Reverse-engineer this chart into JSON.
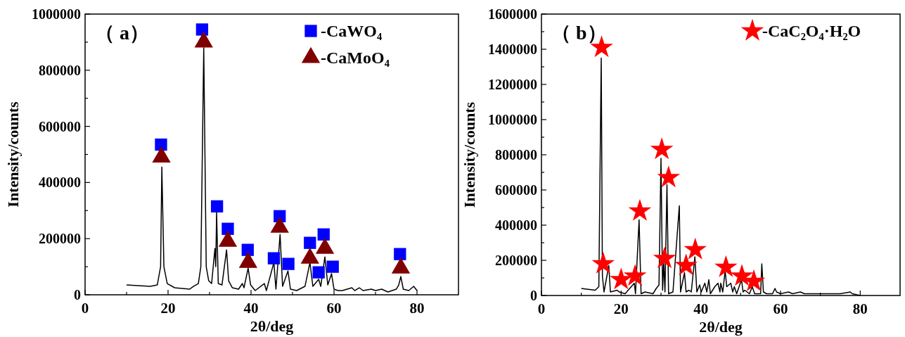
{
  "chart_data": [
    {
      "type": "line",
      "xlabel": "2θ/deg",
      "ylabel": "Intensity/counts",
      "annotations": [
        "（ a）"
      ],
      "xlim": [
        0,
        90
      ],
      "ylim": [
        0,
        1000000
      ],
      "xticks": [
        0,
        {
          "value": 10,
          "label": null
        },
        20,
        {
          "value": 30,
          "label": null
        },
        40,
        {
          "value": 50,
          "label": null
        },
        60,
        {
          "value": 70,
          "label": null
        },
        80
      ],
      "yticks": [
        0,
        {
          "value": 100000,
          "label": null
        },
        200000,
        {
          "value": 300000,
          "label": null
        },
        400000,
        {
          "value": 500000,
          "label": null
        },
        600000,
        {
          "value": 700000,
          "label": null
        },
        800000,
        {
          "value": 900000,
          "label": null
        },
        1000000
      ],
      "legend": "top right",
      "series": [
        {
          "color": "#000000",
          "x": [
            10,
            15.7,
            17.4,
            18.2,
            18.5,
            19.0,
            19.8,
            21.6,
            25.2,
            26.1,
            27.3,
            27.9,
            28.6,
            29.2,
            29.8,
            30.5,
            31.3,
            31.5,
            31.7,
            32.1,
            33,
            34.1,
            34.6,
            35.5,
            37,
            37.9,
            38.3,
            39.3,
            39.9,
            41,
            43.2,
            43.7,
            45.5,
            46.0,
            47.0,
            47.6,
            48.9,
            49.5,
            51,
            53,
            54.2,
            54.9,
            56.3,
            56.8,
            57.8,
            58.5,
            59.4,
            60.0,
            61,
            62,
            64.3,
            65,
            66.1,
            67,
            69,
            70,
            71.5,
            73,
            75,
            75.6,
            76.1,
            76.7,
            78,
            79.2,
            80
          ],
          "values": [
            35000,
            30000,
            35000,
            100000,
            455000,
            100000,
            40000,
            25000,
            20000,
            30000,
            40000,
            100000,
            880000,
            100000,
            50000,
            40000,
            165000,
            100000,
            295000,
            40000,
            35000,
            160000,
            50000,
            25000,
            20000,
            40000,
            25000,
            95000,
            35000,
            15000,
            40000,
            15000,
            115000,
            20000,
            215000,
            30000,
            85000,
            20000,
            15000,
            30000,
            115000,
            30000,
            55000,
            30000,
            135000,
            35000,
            75000,
            20000,
            15000,
            15000,
            25000,
            15000,
            25000,
            15000,
            20000,
            15000,
            20000,
            10000,
            20000,
            35000,
            65000,
            20000,
            15000,
            30000,
            15000
          ]
        },
        {
          "type": "scatter",
          "name": "-CaWO₄",
          "color": "#0000ff",
          "marker": "square",
          "x": [
            18.3,
            28.2,
            31.8,
            34.4,
            39.2,
            45.5,
            46.9,
            49.0,
            54.2,
            56.3,
            57.5,
            59.7,
            75.9
          ],
          "values": [
            535000,
            945000,
            315000,
            235000,
            160000,
            130000,
            280000,
            110000,
            185000,
            80000,
            215000,
            100000,
            145000
          ]
        },
        {
          "type": "scatter",
          "name": "-CaMoO₄",
          "color": "#800000",
          "marker": "triangle",
          "x": [
            18.4,
            28.6,
            34.4,
            39.3,
            46.9,
            54.2,
            57.8,
            76.1
          ],
          "values": [
            490000,
            900000,
            190000,
            115000,
            240000,
            130000,
            165000,
            95000
          ]
        }
      ]
    },
    {
      "type": "line",
      "xlabel": "2θ/deg",
      "ylabel": "Intensity/counts",
      "annotations": [
        "（ b）"
      ],
      "xlim": [
        0,
        90
      ],
      "ylim": [
        0,
        1600000
      ],
      "xticks": [
        0,
        {
          "value": 10,
          "label": null
        },
        20,
        {
          "value": 30,
          "label": null
        },
        40,
        {
          "value": 50,
          "label": null
        },
        60,
        {
          "value": 70,
          "label": null
        },
        80
      ],
      "yticks": [
        0,
        {
          "value": 100000,
          "label": null
        },
        200000,
        {
          "value": 300000,
          "label": null
        },
        400000,
        {
          "value": 500000,
          "label": null
        },
        600000,
        {
          "value": 700000,
          "label": null
        },
        800000,
        {
          "value": 900000,
          "label": null
        },
        1000000,
        {
          "value": 1100000,
          "label": null
        },
        1200000,
        {
          "value": 1300000,
          "label": null
        },
        1400000,
        {
          "value": 1500000,
          "label": null
        },
        1600000
      ],
      "legend": "top right",
      "series": [
        {
          "color": "#000000",
          "x": [
            10,
            13.5,
            14.4,
            15.0,
            15.3,
            15.7,
            16.9,
            17.3,
            19,
            19.5,
            21,
            23.3,
            23.6,
            24.5,
            25.0,
            26,
            28,
            28.8,
            29.5,
            30.0,
            30.4,
            30.7,
            31.0,
            31.5,
            31.9,
            33,
            34.6,
            34.9,
            35.9,
            36.3,
            37,
            37.6,
            38.5,
            39,
            39.7,
            40.1,
            41,
            41.5,
            42,
            42.4,
            43.5,
            44.3,
            44.8,
            45,
            45.5,
            46.1,
            46.5,
            47,
            47.5,
            48,
            48.4,
            49,
            49.6,
            50.2,
            50.6,
            51,
            52.2,
            52.9,
            53.5,
            55,
            55.3,
            55.7,
            56.5,
            58,
            58.6,
            59,
            60,
            62,
            63,
            65,
            66,
            70,
            72,
            75,
            77.5,
            78,
            80
          ],
          "values": [
            40000,
            30000,
            50000,
            1350000,
            110000,
            20000,
            170000,
            20000,
            30000,
            20000,
            10000,
            70000,
            10000,
            430000,
            10000,
            20000,
            10000,
            40000,
            60000,
            780000,
            30000,
            190000,
            20000,
            630000,
            10000,
            20000,
            510000,
            20000,
            130000,
            20000,
            30000,
            20000,
            220000,
            20000,
            60000,
            20000,
            70000,
            20000,
            90000,
            10000,
            50000,
            70000,
            20000,
            70000,
            20000,
            140000,
            50000,
            60000,
            70000,
            20000,
            50000,
            10000,
            50000,
            90000,
            20000,
            30000,
            10000,
            50000,
            10000,
            10000,
            180000,
            20000,
            10000,
            10000,
            40000,
            20000,
            10000,
            20000,
            10000,
            20000,
            10000,
            10000,
            10000,
            10000,
            20000,
            10000,
            0
          ]
        },
        {
          "type": "scatter",
          "name": "-CaC₂O₄·H₂O",
          "color": "#ff0000",
          "marker": "star",
          "x": [
            15.1,
            15.5,
            20.0,
            23.5,
            24.7,
            30.2,
            30.9,
            31.9,
            36.3,
            38.6,
            46.3,
            50.3,
            53.3
          ],
          "values": [
            1410000,
            180000,
            90000,
            110000,
            480000,
            830000,
            210000,
            670000,
            170000,
            260000,
            160000,
            110000,
            80000
          ]
        }
      ]
    }
  ]
}
